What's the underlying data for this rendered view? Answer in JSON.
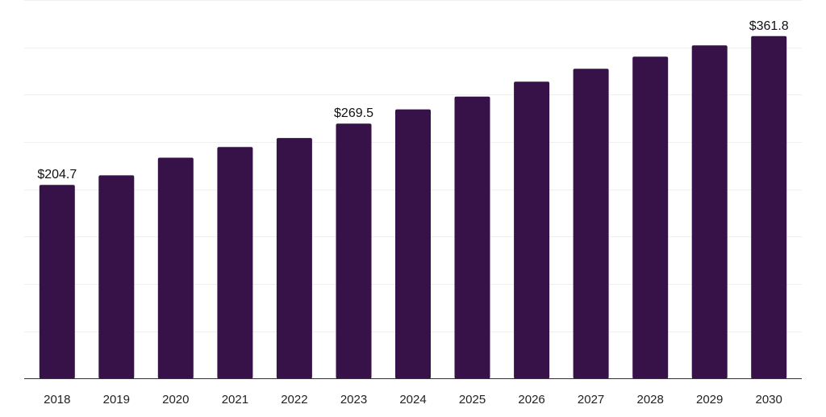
{
  "chart_data": {
    "type": "bar",
    "title": "",
    "xlabel": "",
    "ylabel": "",
    "categories": [
      "2018",
      "2019",
      "2020",
      "2021",
      "2022",
      "2023",
      "2024",
      "2025",
      "2026",
      "2027",
      "2028",
      "2029",
      "2030"
    ],
    "values": [
      204.7,
      214.8,
      233.4,
      244.7,
      254.2,
      269.5,
      284.5,
      298.0,
      313.7,
      327.3,
      340.1,
      352.0,
      361.8
    ],
    "data_labels": [
      {
        "index": 0,
        "text": "$204.7"
      },
      {
        "index": 5,
        "text": "$269.5"
      },
      {
        "index": 12,
        "text": "$361.8"
      }
    ],
    "ylim": [
      0,
      400
    ],
    "grid": true,
    "legend": "none",
    "colors": {
      "bar": "#361249",
      "grid": "#efefef",
      "axis": "#333333",
      "text": "#222222"
    }
  }
}
